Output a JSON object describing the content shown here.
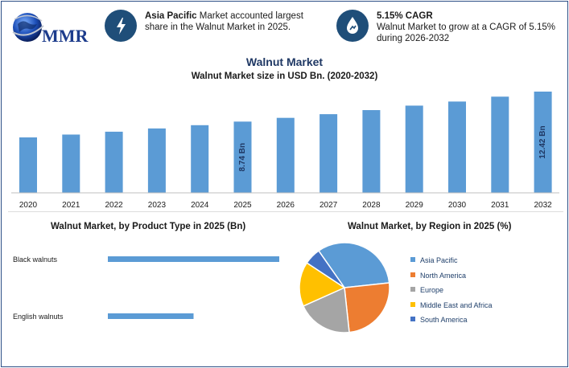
{
  "header": {
    "logo_text": "MMR",
    "kpi1": {
      "bold": "Asia Pacific",
      "text": " Market accounted largest share in the Walnut Market in 2025.",
      "icon": "lightning-icon"
    },
    "kpi2": {
      "bold": "5.15% CAGR",
      "text": "Walnut Market to grow at a CAGR of 5.15% during 2026-2032",
      "icon": "growth-drop-icon"
    }
  },
  "colors": {
    "bar": "#5b9bd5",
    "title": "#1f3864",
    "icon_bg": "#1f4e79"
  },
  "chart_data": [
    {
      "type": "bar",
      "title": "Walnut Market",
      "subtitle": "Walnut Market size in USD Bn. (2020-2032)",
      "categories": [
        "2020",
        "2021",
        "2022",
        "2023",
        "2024",
        "2025",
        "2026",
        "2027",
        "2028",
        "2029",
        "2030",
        "2031",
        "2032"
      ],
      "values": [
        6.8,
        7.15,
        7.5,
        7.9,
        8.3,
        8.74,
        9.2,
        9.65,
        10.15,
        10.7,
        11.2,
        11.8,
        12.42
      ],
      "data_labels": {
        "2025": "8.74 Bn",
        "2032": "12.42 Bn"
      },
      "ylim": [
        0,
        12.42
      ]
    },
    {
      "type": "bar",
      "orientation": "horizontal",
      "title": "Walnut Market, by Product Type in 2025 (Bn)",
      "categories": [
        "Black walnuts",
        "English walnuts"
      ],
      "values": [
        5.5,
        2.75
      ],
      "xlim": [
        0,
        5.5
      ]
    },
    {
      "type": "pie",
      "title": "Walnut Market, by Region in 2025 (%)",
      "categories": [
        "Asia Pacific",
        "North America",
        "Europe",
        "Middle East and Africa",
        "South America"
      ],
      "values": [
        33,
        25,
        20,
        16,
        6
      ],
      "colors": [
        "#5b9bd5",
        "#ed7d31",
        "#a5a5a5",
        "#ffc000",
        "#4472c4"
      ],
      "legend_position": "right"
    }
  ]
}
